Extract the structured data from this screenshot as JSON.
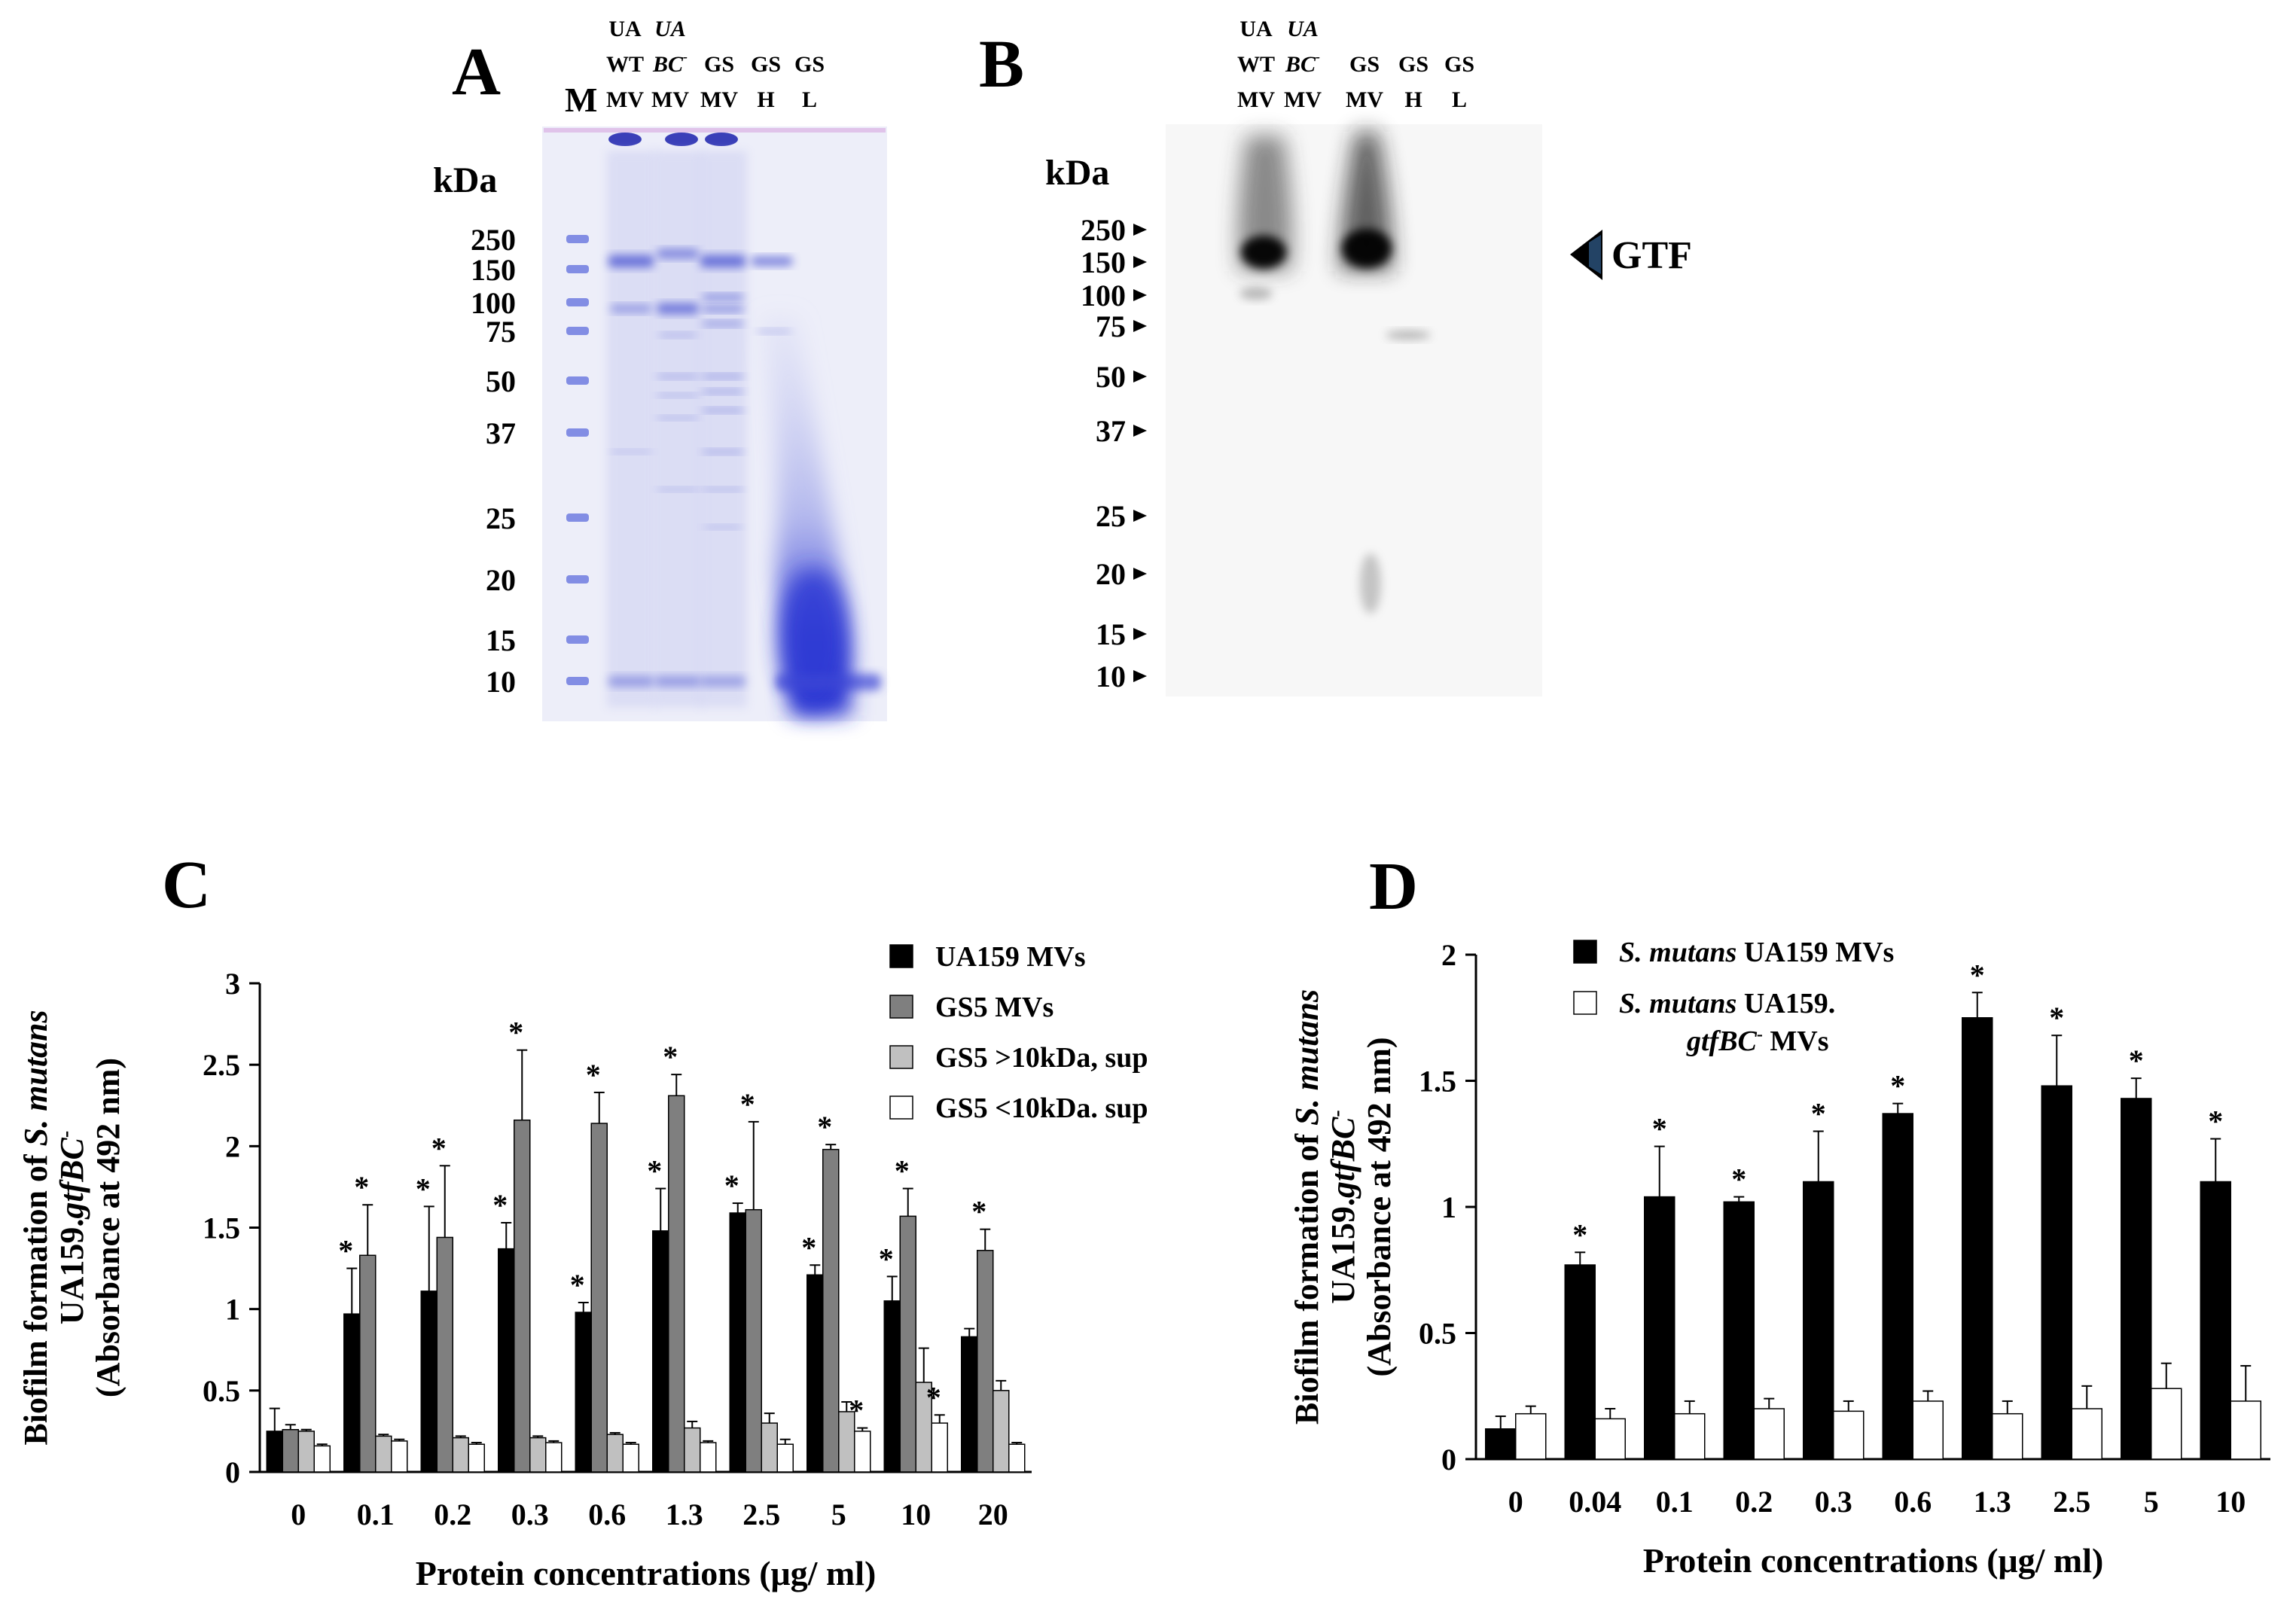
{
  "panels": {
    "A": {
      "letter": "A",
      "marker_lane": "M",
      "kda_label": "kDa",
      "lanes": [
        {
          "l1": "UA",
          "l2": "WT",
          "l3": "MV",
          "italic1": false,
          "italic2": false
        },
        {
          "l1": "UA",
          "l2": "BC",
          "l3": "MV",
          "italic1": true,
          "italic2": true,
          "sup2": "-"
        },
        {
          "l1": "",
          "l2": "GS",
          "l3": "MV",
          "italic1": false,
          "italic2": false
        },
        {
          "l1": "",
          "l2": "GS",
          "l3": "H",
          "italic1": false,
          "italic2": false
        },
        {
          "l1": "",
          "l2": "GS",
          "l3": "L",
          "italic1": false,
          "italic2": false
        }
      ],
      "markers": [
        "250",
        "150",
        "100",
        "75",
        "50",
        "37",
        "25",
        "20",
        "15",
        "10"
      ]
    },
    "B": {
      "letter": "B",
      "kda_label": "kDa",
      "lanes": [
        {
          "l1": "UA",
          "l2": "WT",
          "l3": "MV",
          "italic1": false,
          "italic2": false
        },
        {
          "l1": "UA",
          "l2": "BC",
          "l3": "MV",
          "italic1": true,
          "italic2": true,
          "sup2": "-"
        },
        {
          "l1": "",
          "l2": "GS",
          "l3": "MV",
          "italic1": false,
          "italic2": false
        },
        {
          "l1": "",
          "l2": "GS",
          "l3": "H",
          "italic1": false,
          "italic2": false
        },
        {
          "l1": "",
          "l2": "GS",
          "l3": "L",
          "italic1": false,
          "italic2": false
        }
      ],
      "markers": [
        "250",
        "150",
        "100",
        "75",
        "50",
        "37",
        "25",
        "20",
        "15",
        "10"
      ],
      "band_label": "GTF"
    }
  },
  "chart_data": [
    {
      "panel": "C",
      "type": "bar",
      "title": "C",
      "ylabel_lines": [
        "Biofilm formation of S. mutans",
        "UA159.gtfBC-",
        "(Absorbance at 492 nm)"
      ],
      "xlabel": "Protein concentrations (μg/ ml)",
      "ylim": [
        0,
        3
      ],
      "yticks": [
        "0",
        "0.5",
        "1",
        "1.5",
        "2",
        "2.5",
        "3"
      ],
      "categories": [
        "0",
        "0.1",
        "0.2",
        "0.3",
        "0.6",
        "1.3",
        "2.5",
        "5",
        "10",
        "20"
      ],
      "legend_position": "top-right",
      "series": [
        {
          "name": "UA159 MVs",
          "color": "#000000",
          "values": [
            0.25,
            0.97,
            1.11,
            1.37,
            0.98,
            1.48,
            1.59,
            1.21,
            1.05,
            0.83
          ],
          "errors": [
            0.14,
            0.28,
            0.52,
            0.16,
            0.06,
            0.26,
            0.06,
            0.06,
            0.15,
            0.05
          ],
          "significant": [
            false,
            true,
            true,
            true,
            true,
            true,
            true,
            true,
            true,
            false
          ]
        },
        {
          "name": "GS5 MVs",
          "color": "#7f7f7f",
          "values": [
            0.26,
            1.33,
            1.44,
            2.16,
            2.14,
            2.31,
            1.61,
            1.98,
            1.57,
            1.36
          ],
          "errors": [
            0.03,
            0.31,
            0.44,
            0.43,
            0.19,
            0.13,
            0.54,
            0.03,
            0.17,
            0.13
          ],
          "significant": [
            false,
            true,
            true,
            true,
            true,
            true,
            true,
            true,
            true,
            true
          ]
        },
        {
          "name": "GS5 >10kDa, sup",
          "color": "#c0c0c0",
          "values": [
            0.25,
            0.22,
            0.21,
            0.21,
            0.23,
            0.27,
            0.3,
            0.37,
            0.55,
            0.5
          ],
          "errors": [
            0.01,
            0.01,
            0.01,
            0.01,
            0.01,
            0.04,
            0.06,
            0.06,
            0.21,
            0.06
          ],
          "significant": [
            false,
            false,
            false,
            false,
            false,
            false,
            false,
            false,
            false,
            false
          ]
        },
        {
          "name": "GS5 <10kDa. sup",
          "color": "#ffffff",
          "values": [
            0.16,
            0.19,
            0.17,
            0.18,
            0.17,
            0.18,
            0.17,
            0.25,
            0.3,
            0.17
          ],
          "errors": [
            0.01,
            0.01,
            0.01,
            0.01,
            0.01,
            0.01,
            0.03,
            0.02,
            0.05,
            0.01
          ],
          "significant": [
            false,
            false,
            false,
            false,
            false,
            false,
            false,
            true,
            true,
            false
          ]
        }
      ]
    },
    {
      "panel": "D",
      "type": "bar",
      "title": "D",
      "ylabel_lines": [
        "Biofilm formation of S. mutans",
        "UA159.gtfBC-",
        "(Absorbance at 492 nm)"
      ],
      "xlabel": "Protein concentrations (μg/ ml)",
      "ylim": [
        0,
        2
      ],
      "yticks": [
        "0",
        "0.5",
        "1",
        "1.5",
        "2"
      ],
      "categories": [
        "0",
        "0.04",
        "0.1",
        "0.2",
        "0.3",
        "0.6",
        "1.3",
        "2.5",
        "5",
        "10"
      ],
      "legend_position": "top-left",
      "series": [
        {
          "name": "S. mutans UA159 MVs",
          "color": "#000000",
          "values": [
            0.12,
            0.77,
            1.04,
            1.02,
            1.1,
            1.37,
            1.75,
            1.48,
            1.43,
            1.1
          ],
          "errors": [
            0.05,
            0.05,
            0.2,
            0.02,
            0.2,
            0.04,
            0.1,
            0.2,
            0.08,
            0.17
          ],
          "significant": [
            false,
            true,
            true,
            true,
            true,
            true,
            true,
            true,
            true,
            true
          ]
        },
        {
          "name": "S. mutans UA159. gtfBC- MVs",
          "color": "#ffffff",
          "values": [
            0.18,
            0.16,
            0.18,
            0.2,
            0.19,
            0.23,
            0.18,
            0.2,
            0.28,
            0.23
          ],
          "errors": [
            0.03,
            0.04,
            0.05,
            0.04,
            0.04,
            0.04,
            0.05,
            0.09,
            0.1,
            0.14
          ],
          "significant": [
            false,
            false,
            false,
            false,
            false,
            false,
            false,
            false,
            false,
            false
          ]
        }
      ]
    }
  ]
}
